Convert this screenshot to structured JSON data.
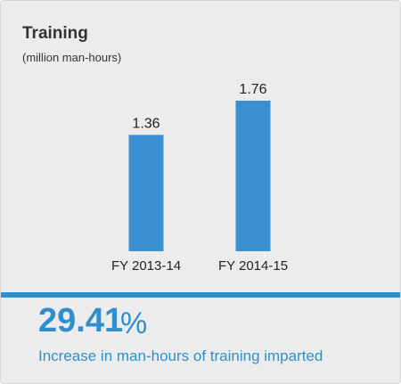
{
  "chart_data": {
    "type": "bar",
    "title": "Training",
    "subtitle": "(million man-hours)",
    "categories": [
      "FY 2013-14",
      "FY 2014-15"
    ],
    "values": [
      1.36,
      1.76
    ],
    "value_labels": [
      "1.36",
      "1.76"
    ],
    "ylim": [
      0,
      1.76
    ],
    "grid": false,
    "bar_color": "#3a8fd0"
  },
  "highlight": {
    "value": "29.41",
    "unit": "%",
    "caption": "Increase in man-hours of training imparted",
    "color": "#2f8fcc"
  }
}
